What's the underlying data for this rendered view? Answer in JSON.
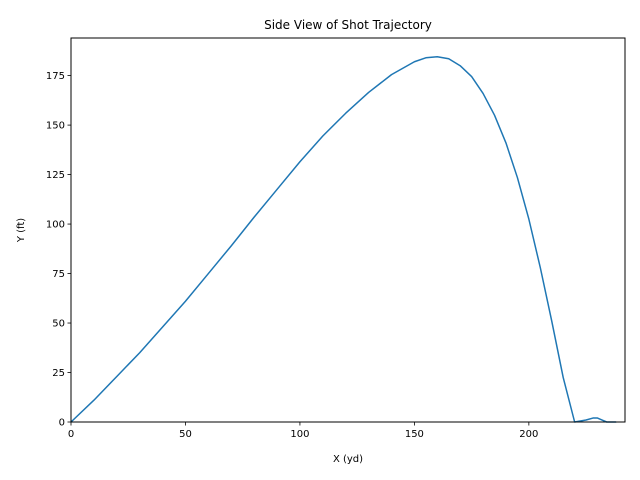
{
  "chart_data": {
    "type": "line",
    "title": "Side View of Shot Trajectory",
    "xlabel": "X (yd)",
    "ylabel": "Y (ft)",
    "xlim": [
      0,
      242
    ],
    "ylim": [
      0,
      194
    ],
    "xticks": [
      0,
      50,
      100,
      150,
      200
    ],
    "yticks": [
      0,
      25,
      50,
      75,
      100,
      125,
      150,
      175
    ],
    "grid": false,
    "legend": "none",
    "series": [
      {
        "color": "#1f77b4",
        "x": [
          0,
          10,
          20,
          30,
          40,
          50,
          60,
          70,
          80,
          90,
          100,
          110,
          120,
          130,
          140,
          150,
          155,
          160,
          165,
          170,
          175,
          180,
          185,
          190,
          195,
          200,
          205,
          210,
          215,
          220,
          225,
          228,
          230,
          232,
          234,
          236,
          238
        ],
        "y": [
          0,
          11,
          23,
          35,
          48,
          61,
          75,
          89,
          103.5,
          117.5,
          131.5,
          144.5,
          156,
          166.5,
          175.5,
          182,
          184,
          184.5,
          183.5,
          180,
          174.5,
          166,
          155,
          141,
          123.5,
          102.5,
          78,
          51,
          22.5,
          0,
          1,
          2,
          2,
          1,
          0,
          0,
          0
        ]
      }
    ]
  }
}
